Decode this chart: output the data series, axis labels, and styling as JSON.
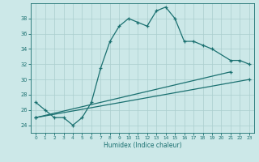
{
  "title": "",
  "xlabel": "Humidex (Indice chaleur)",
  "bg_color": "#cce8e8",
  "line_color": "#1a7070",
  "grid_color": "#aacece",
  "xlim": [
    -0.5,
    23.5
  ],
  "ylim": [
    23.0,
    40.0
  ],
  "xticks": [
    0,
    1,
    2,
    3,
    4,
    5,
    6,
    7,
    8,
    9,
    10,
    11,
    12,
    13,
    14,
    15,
    16,
    17,
    18,
    19,
    20,
    21,
    22,
    23
  ],
  "yticks": [
    24,
    26,
    28,
    30,
    32,
    34,
    36,
    38
  ],
  "series1_x": [
    0,
    1,
    2,
    3,
    4,
    5,
    6,
    7,
    8,
    9,
    10,
    11,
    12,
    13,
    14,
    15,
    16,
    17,
    18,
    19,
    21,
    22,
    23
  ],
  "series1_y": [
    27,
    26,
    25,
    25,
    24,
    25,
    27,
    31.5,
    35,
    37,
    38,
    37.5,
    37,
    39,
    39.5,
    38,
    35,
    35,
    34.5,
    34,
    32.5,
    32.5,
    32
  ],
  "series2_x": [
    0,
    23
  ],
  "series2_y": [
    25,
    30
  ],
  "series3_x": [
    0,
    21
  ],
  "series3_y": [
    25,
    31
  ]
}
